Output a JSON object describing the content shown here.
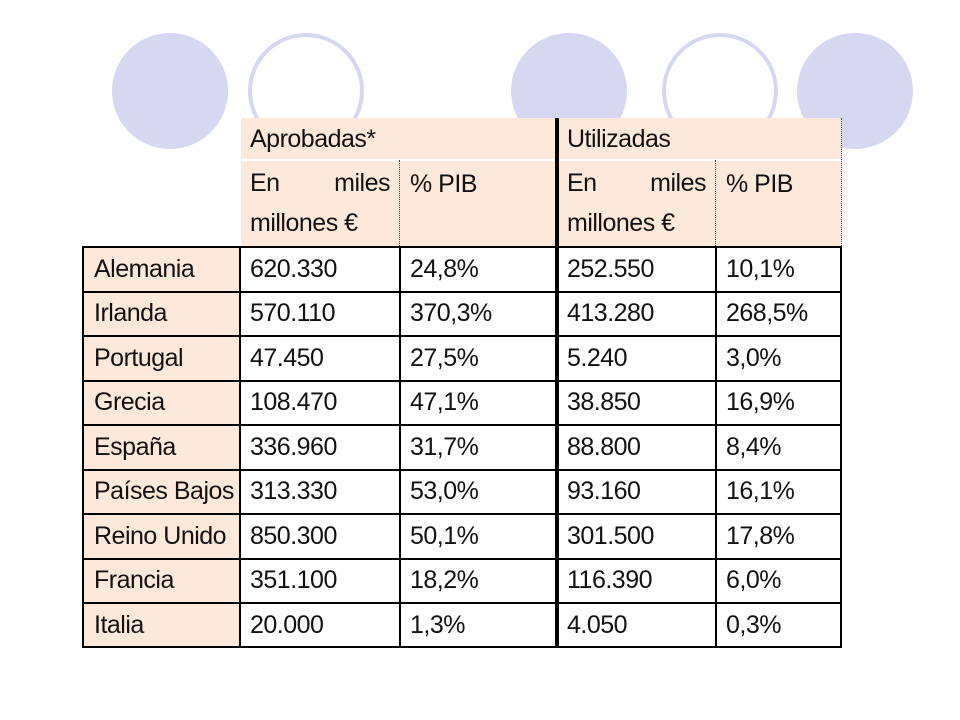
{
  "table": {
    "group_headers": {
      "approved": "Aprobadas*",
      "used": "Utilizadas"
    },
    "sub_headers": {
      "amount_word1": "En",
      "amount_word2": "miles",
      "amount_line2": "millones €",
      "pct": "% PIB"
    },
    "rows": [
      {
        "country": "Alemania",
        "approved_amount": "620.330",
        "approved_pct": "24,8%",
        "used_amount": "252.550",
        "used_pct": "10,1%"
      },
      {
        "country": "Irlanda",
        "approved_amount": "570.110",
        "approved_pct": "370,3%",
        "used_amount": "413.280",
        "used_pct": "268,5%"
      },
      {
        "country": "Portugal",
        "approved_amount": "47.450",
        "approved_pct": "27,5%",
        "used_amount": "5.240",
        "used_pct": "3,0%"
      },
      {
        "country": "Grecia",
        "approved_amount": "108.470",
        "approved_pct": "47,1%",
        "used_amount": "38.850",
        "used_pct": "16,9%"
      },
      {
        "country": "España",
        "approved_amount": "336.960",
        "approved_pct": "31,7%",
        "used_amount": "88.800",
        "used_pct": "8,4%"
      },
      {
        "country": "Países Bajos",
        "approved_amount": "313.330",
        "approved_pct": "53,0%",
        "used_amount": "93.160",
        "used_pct": "16,1%"
      },
      {
        "country": "Reino Unido",
        "approved_amount": "850.300",
        "approved_pct": "50,1%",
        "used_amount": "301.500",
        "used_pct": "17,8%"
      },
      {
        "country": "Francia",
        "approved_amount": "351.100",
        "approved_pct": "18,2%",
        "used_amount": "116.390",
        "used_pct": "6,0%"
      },
      {
        "country": "Italia",
        "approved_amount": "20.000",
        "approved_pct": "1,3%",
        "used_amount": "4.050",
        "used_pct": "0,3%"
      }
    ]
  },
  "colors": {
    "header_fill": "#fde9dc",
    "circle_fill": "#d6d7f0",
    "border": "#000000"
  }
}
